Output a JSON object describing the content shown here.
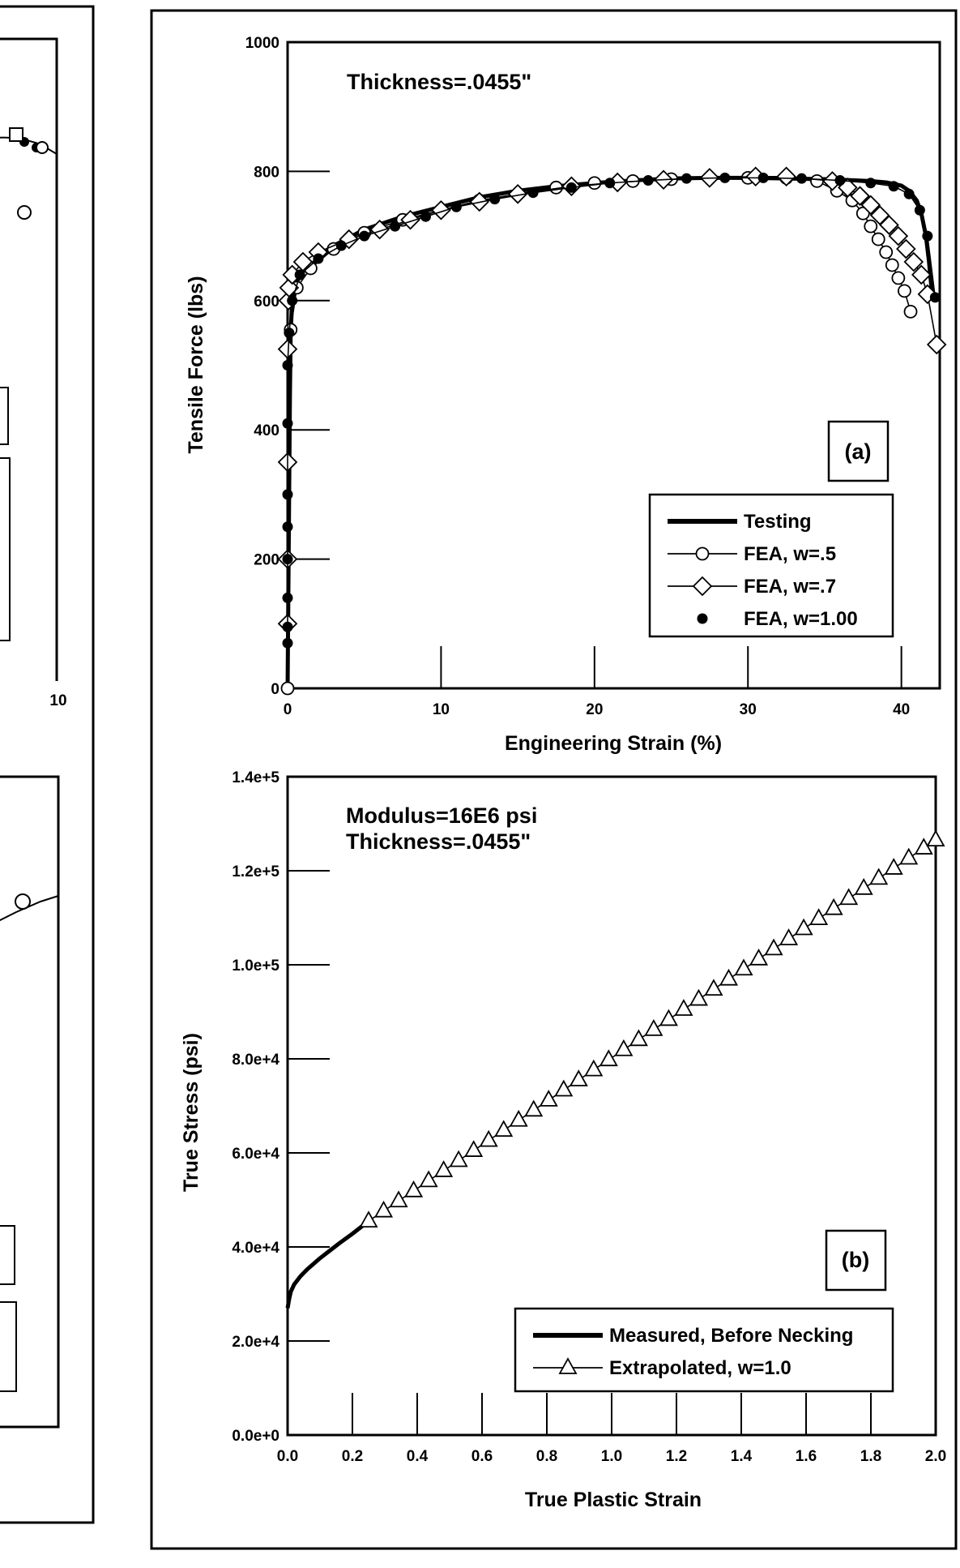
{
  "left_panel_fragment": {
    "tick_labels": [
      "10"
    ]
  },
  "chart_data": [
    {
      "id": "a",
      "type": "line",
      "xlabel": "Engineering Strain (%)",
      "ylabel": "Tensile Force (lbs)",
      "xlim": [
        0,
        42.5
      ],
      "ylim": [
        0,
        1000
      ],
      "xticks": [
        0,
        10,
        20,
        30,
        40
      ],
      "yticks": [
        0,
        200,
        400,
        600,
        800,
        1000
      ],
      "annotation": "Thickness=.0455\"",
      "panel_label": "(a)",
      "legend_position": "bottom-right",
      "series": [
        {
          "name": "Testing",
          "style": "thick-line",
          "x": [
            0,
            0.05,
            0.1,
            0.15,
            0.2,
            0.3,
            0.5,
            1,
            2,
            3,
            5,
            7.5,
            10,
            12.5,
            15,
            17.5,
            20,
            22.5,
            25,
            27.5,
            30,
            32.5,
            35,
            36,
            37,
            38,
            39,
            40,
            40.5,
            41,
            41.3,
            41.6,
            41.8,
            42
          ],
          "y": [
            0,
            150,
            300,
            450,
            550,
            600,
            625,
            645,
            665,
            685,
            710,
            730,
            745,
            760,
            770,
            777,
            782,
            786,
            789,
            790,
            790,
            789,
            788,
            787,
            786,
            785,
            783,
            778,
            770,
            755,
            735,
            700,
            660,
            610
          ]
        },
        {
          "name": "FEA, w=.5",
          "marker": "circle-open",
          "x": [
            0,
            0.2,
            0.6,
            1.5,
            3,
            5,
            7.5,
            10,
            12.5,
            15,
            17.5,
            20,
            22.5,
            25,
            27.5,
            30,
            32.5,
            34.5,
            35.8,
            36.8,
            37.5,
            38,
            38.5,
            39,
            39.4,
            39.8,
            40.2,
            40.6
          ],
          "y": [
            0,
            555,
            620,
            650,
            680,
            705,
            725,
            740,
            755,
            765,
            775,
            782,
            785,
            788,
            790,
            790,
            790,
            785,
            770,
            755,
            735,
            715,
            695,
            675,
            655,
            635,
            615,
            583
          ]
        },
        {
          "name": "FEA, w=.7",
          "marker": "diamond-open",
          "x": [
            0,
            0,
            0,
            0,
            0.05,
            0.1,
            0.3,
            1,
            2,
            4,
            6,
            8,
            10,
            12.5,
            15,
            18.5,
            21.5,
            24.5,
            27.5,
            30.5,
            32.5,
            35.5,
            36.5,
            37.3,
            38,
            38.6,
            39.2,
            39.8,
            40.3,
            40.8,
            41.3,
            41.7,
            42.3
          ],
          "y": [
            100,
            200,
            350,
            525,
            600,
            620,
            640,
            660,
            675,
            695,
            710,
            725,
            740,
            753,
            765,
            777,
            783,
            787,
            790,
            792,
            792,
            785,
            775,
            762,
            748,
            732,
            717,
            700,
            680,
            660,
            640,
            610,
            532
          ]
        },
        {
          "name": "FEA, w=1.00",
          "marker": "circle-filled",
          "x": [
            0,
            0,
            0,
            0,
            0,
            0,
            0,
            0,
            0.1,
            0.3,
            0.8,
            2,
            3.5,
            5,
            7,
            9,
            11,
            13.5,
            16,
            18.5,
            21,
            23.5,
            26,
            28.5,
            31,
            33.5,
            36,
            38,
            39.5,
            40.5,
            41.2,
            41.7,
            42.2
          ],
          "y": [
            70,
            95,
            140,
            200,
            250,
            300,
            410,
            500,
            550,
            600,
            640,
            665,
            685,
            700,
            715,
            730,
            745,
            757,
            767,
            775,
            782,
            786,
            789,
            790,
            790,
            789,
            786,
            782,
            777,
            765,
            740,
            700,
            605
          ]
        }
      ]
    },
    {
      "id": "b",
      "type": "line",
      "xlabel": "True Plastic Strain",
      "ylabel": "True Stress (psi)",
      "xlim": [
        0,
        2.0
      ],
      "ylim": [
        0,
        140000
      ],
      "xticks": [
        0.0,
        0.2,
        0.4,
        0.6,
        0.8,
        1.0,
        1.2,
        1.4,
        1.6,
        1.8,
        2.0
      ],
      "xtick_labels": [
        "0.0",
        "0.2",
        "0.4",
        "0.6",
        "0.8",
        "1.0",
        "1.2",
        "1.4",
        "1.6",
        "1.8",
        "2.0"
      ],
      "yticks": [
        0,
        20000,
        40000,
        60000,
        80000,
        100000,
        120000,
        140000
      ],
      "ytick_labels": [
        "0.0e+0",
        "2.0e+4",
        "4.0e+4",
        "6.0e+4",
        "8.0e+4",
        "1.0e+5",
        "1.2e+5",
        "1.4e+5"
      ],
      "annotation_lines": [
        "Modulus=16E6 psi",
        "Thickness=.0455\""
      ],
      "panel_label": "(b)",
      "legend_position": "bottom-right",
      "series": [
        {
          "name": "Measured, Before Necking",
          "style": "thick-line",
          "x": [
            0,
            0.005,
            0.01,
            0.02,
            0.04,
            0.06,
            0.08,
            0.1,
            0.13,
            0.16,
            0.2,
            0.25
          ],
          "y": [
            27000,
            29000,
            30500,
            32000,
            33800,
            35200,
            36400,
            37600,
            39200,
            40800,
            42800,
            45500
          ]
        },
        {
          "name": "Extrapolated, w=1.0",
          "marker": "triangle-open",
          "x_start": 0.25,
          "x_step": 0.0463,
          "count": 39,
          "y_start": 45500,
          "slope": 46300
        }
      ]
    }
  ]
}
